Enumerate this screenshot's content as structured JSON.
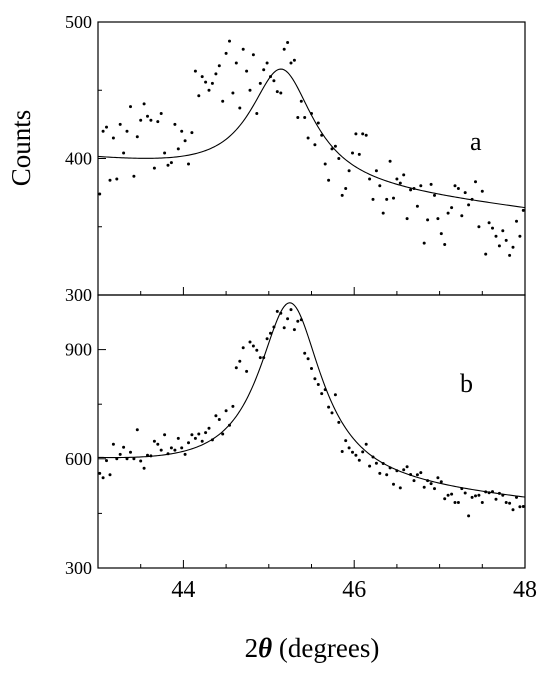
{
  "chart_data": [
    {
      "type": "scatter",
      "panel_label": "a",
      "xlim": [
        43,
        48
      ],
      "ylim": [
        300,
        500
      ],
      "yticks": [
        300,
        400,
        500
      ],
      "ytick_labels": [
        "300",
        "400",
        "500"
      ],
      "ylabel": "Counts",
      "grid": false,
      "legend": "none",
      "series": [
        {
          "kind": "points",
          "x": [
            43.02,
            43.06,
            43.1,
            43.14,
            43.18,
            43.22,
            43.26,
            43.3,
            43.34,
            43.38,
            43.42,
            43.46,
            43.5,
            43.54,
            43.58,
            43.62,
            43.66,
            43.7,
            43.74,
            43.78,
            43.82,
            43.86,
            43.9,
            43.94,
            43.98,
            44.02,
            44.06,
            44.1,
            44.14,
            44.18,
            44.22,
            44.26,
            44.3,
            44.34,
            44.38,
            44.42,
            44.46,
            44.5,
            44.54,
            44.58,
            44.62,
            44.66,
            44.7,
            44.74,
            44.78,
            44.82,
            44.86,
            44.9,
            44.94,
            44.98,
            45.02,
            45.06,
            45.1,
            45.14,
            45.18,
            45.22,
            45.26,
            45.3,
            45.34,
            45.38,
            45.42,
            45.46,
            45.5,
            45.54,
            45.58,
            45.62,
            45.66,
            45.7,
            45.74,
            45.78,
            45.82,
            45.86,
            45.9,
            45.94,
            45.98,
            46.02,
            46.06,
            46.1,
            46.14,
            46.18,
            46.22,
            46.26,
            46.3,
            46.34,
            46.38,
            46.42,
            46.46,
            46.5,
            46.54,
            46.58,
            46.62,
            46.66,
            46.7,
            46.74,
            46.78,
            46.82,
            46.86,
            46.9,
            46.94,
            46.98,
            47.02,
            47.06,
            47.1,
            47.14,
            47.18,
            47.22,
            47.26,
            47.3,
            47.34,
            47.38,
            47.42,
            47.46,
            47.5,
            47.54,
            47.58,
            47.62,
            47.66,
            47.7,
            47.74,
            47.78,
            47.82,
            47.86,
            47.9,
            47.94,
            47.98
          ],
          "y": [
            374,
            420,
            423,
            384,
            415,
            385,
            425,
            404,
            420,
            438,
            387,
            416,
            428,
            440,
            431,
            428,
            393,
            427,
            433,
            404,
            395,
            397,
            425,
            407,
            420,
            413,
            396,
            419,
            464,
            446,
            460,
            456,
            450,
            455,
            462,
            468,
            442,
            477,
            486,
            448,
            470,
            437,
            480,
            464,
            450,
            476,
            433,
            455,
            465,
            470,
            460,
            457,
            449,
            448,
            480,
            485,
            470,
            472,
            430,
            442,
            430,
            415,
            433,
            410,
            426,
            417,
            396,
            384,
            407,
            409,
            400,
            373,
            378,
            391,
            404,
            418,
            403,
            418,
            417,
            385,
            370,
            391,
            380,
            360,
            370,
            398,
            371,
            385,
            382,
            388,
            356,
            377,
            378,
            365,
            380,
            338,
            355,
            381,
            373,
            356,
            345,
            337,
            360,
            364,
            380,
            378,
            358,
            375,
            366,
            370,
            383,
            350,
            376,
            330,
            353,
            349,
            343,
            336,
            347,
            340,
            329,
            335,
            354,
            343,
            362
          ]
        },
        {
          "kind": "fit",
          "model": "lorentzian",
          "center": 45.15,
          "hwhm": 0.45,
          "baseline_at_43": 398,
          "baseline_at_48": 362,
          "peak_height_above_baseline": 83
        }
      ]
    },
    {
      "type": "scatter",
      "panel_label": "b",
      "xlim": [
        43,
        48
      ],
      "ylim": [
        300,
        1050
      ],
      "yticks": [
        300,
        600,
        900
      ],
      "ytick_labels": [
        "300",
        "600",
        "900"
      ],
      "xticks": [
        44,
        46,
        48
      ],
      "xtick_labels": [
        "44",
        "46",
        "48"
      ],
      "grid": false,
      "legend": "none",
      "series": [
        {
          "kind": "points",
          "x": [
            43.02,
            43.06,
            43.1,
            43.14,
            43.18,
            43.22,
            43.26,
            43.3,
            43.34,
            43.38,
            43.42,
            43.46,
            43.5,
            43.54,
            43.58,
            43.62,
            43.66,
            43.7,
            43.74,
            43.78,
            43.82,
            43.86,
            43.9,
            43.94,
            43.98,
            44.02,
            44.06,
            44.1,
            44.14,
            44.18,
            44.22,
            44.26,
            44.3,
            44.34,
            44.38,
            44.42,
            44.46,
            44.5,
            44.54,
            44.58,
            44.62,
            44.66,
            44.7,
            44.74,
            44.78,
            44.82,
            44.86,
            44.9,
            44.94,
            44.98,
            45.02,
            45.06,
            45.1,
            45.14,
            45.18,
            45.22,
            45.26,
            45.3,
            45.34,
            45.38,
            45.42,
            45.46,
            45.5,
            45.54,
            45.58,
            45.62,
            45.66,
            45.7,
            45.74,
            45.78,
            45.82,
            45.86,
            45.9,
            45.94,
            45.98,
            46.02,
            46.06,
            46.1,
            46.14,
            46.18,
            46.22,
            46.26,
            46.3,
            46.34,
            46.38,
            46.42,
            46.46,
            46.5,
            46.54,
            46.58,
            46.62,
            46.66,
            46.7,
            46.74,
            46.78,
            46.82,
            46.86,
            46.9,
            46.94,
            46.98,
            47.02,
            47.06,
            47.1,
            47.14,
            47.18,
            47.22,
            47.26,
            47.3,
            47.34,
            47.38,
            47.42,
            47.46,
            47.5,
            47.54,
            47.58,
            47.62,
            47.66,
            47.7,
            47.74,
            47.78,
            47.82,
            47.86,
            47.9,
            47.94,
            47.98
          ],
          "y": [
            560,
            548,
            595,
            556,
            640,
            600,
            612,
            632,
            600,
            618,
            600,
            680,
            594,
            574,
            610,
            608,
            648,
            640,
            624,
            666,
            614,
            630,
            624,
            656,
            630,
            612,
            644,
            666,
            656,
            668,
            648,
            672,
            684,
            652,
            718,
            708,
            668,
            732,
            692,
            744,
            850,
            868,
            905,
            840,
            921,
            910,
            898,
            878,
            878,
            930,
            945,
            962,
            1005,
            1000,
            960,
            985,
            1010,
            955,
            978,
            982,
            890,
            875,
            848,
            820,
            804,
            779,
            790,
            742,
            726,
            776,
            700,
            620,
            650,
            630,
            618,
            610,
            596,
            619,
            640,
            580,
            605,
            588,
            560,
            587,
            556,
            575,
            530,
            567,
            520,
            570,
            578,
            557,
            540,
            556,
            562,
            522,
            540,
            532,
            518,
            548,
            537,
            490,
            500,
            503,
            480,
            480,
            518,
            506,
            443,
            494,
            498,
            500,
            480,
            509,
            507,
            510,
            489,
            505,
            500,
            480,
            478,
            460,
            494,
            468,
            469
          ]
        },
        {
          "kind": "fit",
          "model": "lorentzian",
          "center": 45.25,
          "hwhm": 0.45,
          "baseline_at_43": 585,
          "baseline_at_48": 482,
          "peak_height_above_baseline": 490
        }
      ]
    }
  ],
  "xlabel": {
    "prefix": "2",
    "symbol": "θ",
    "suffix": " (degrees)"
  }
}
